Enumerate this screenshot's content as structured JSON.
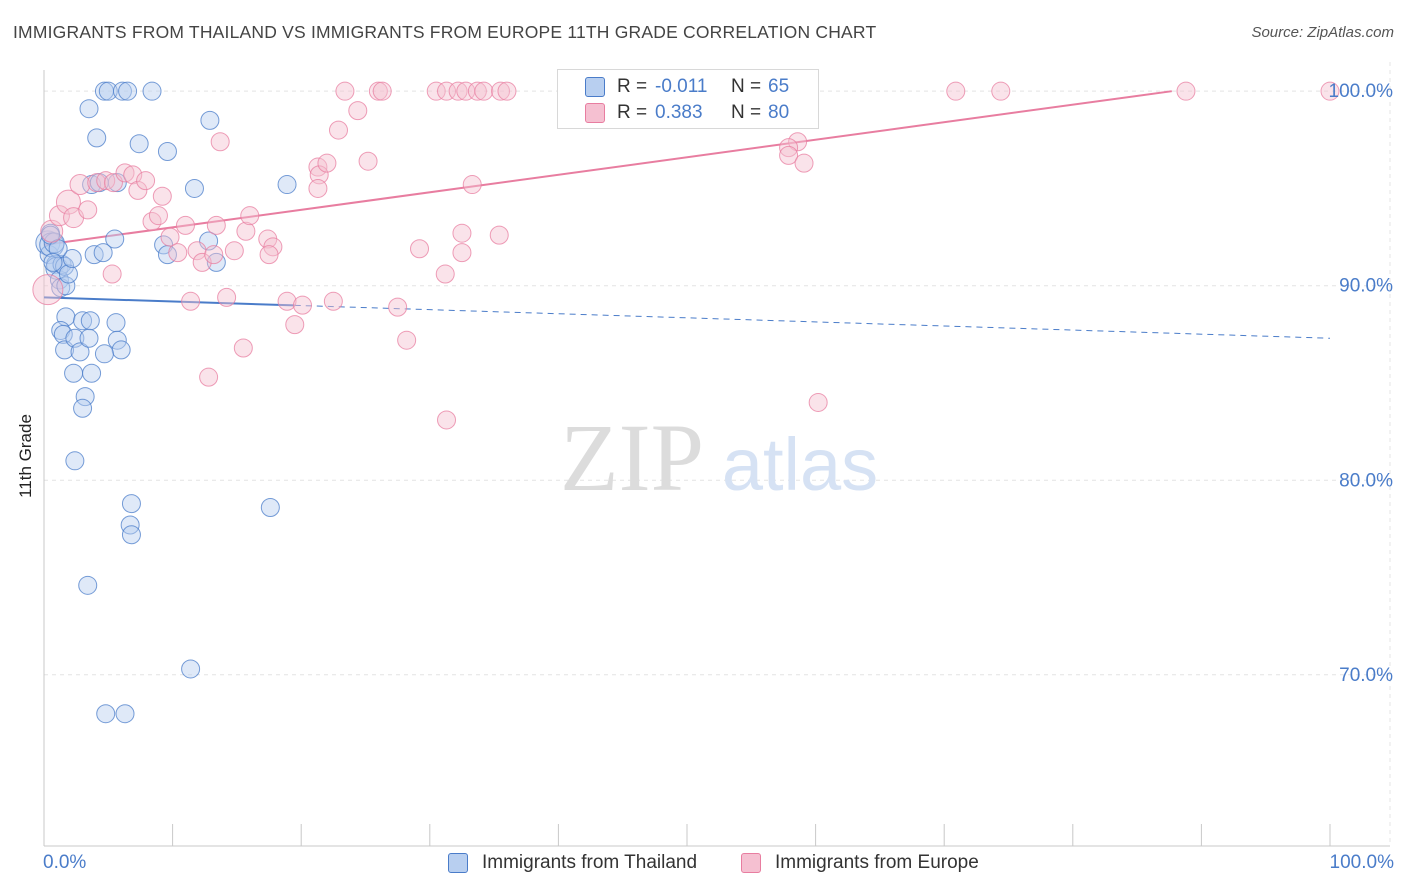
{
  "title": "IMMIGRANTS FROM THAILAND VS IMMIGRANTS FROM EUROPE 11TH GRADE CORRELATION CHART",
  "source": "Source: ZipAtlas.com",
  "watermark": {
    "zip": "ZIP",
    "atlas": "atlas"
  },
  "colors": {
    "blue": "#4a7cc9",
    "blue_fill": "#b8cff0",
    "pink": "#e87da0",
    "pink_fill": "#f5c0d1",
    "grid": "#e4e4e4"
  },
  "legend": {
    "rows": [
      {
        "r_label": "R =",
        "r_value": "-0.011",
        "n_label": "N =",
        "n_value": "65",
        "color": "blue"
      },
      {
        "r_label": "R =",
        "r_value": "0.383",
        "n_label": "N =",
        "n_value": "80",
        "color": "pink"
      }
    ]
  },
  "bottom_legend": [
    "Immigrants from Thailand",
    "Immigrants from Europe"
  ],
  "chart_data": {
    "type": "scatter",
    "title": "IMMIGRANTS FROM THAILAND VS IMMIGRANTS FROM EUROPE 11TH GRADE CORRELATION CHART",
    "xlabel": "",
    "ylabel": "11th Grade",
    "xlim": [
      0,
      100
    ],
    "ylim": [
      61.2,
      101.5
    ],
    "x_tick_labels": [
      "0.0%",
      "100.0%"
    ],
    "y_ticks": [
      100,
      90,
      80,
      70
    ],
    "y_tick_labels": [
      "100.0%",
      "90.0%",
      "80.0%",
      "70.0%"
    ],
    "series": [
      {
        "name": "Immigrants from Thailand",
        "color": "blue",
        "r": -0.011,
        "n": 65,
        "trend": {
          "x0": 0,
          "y0": 89.4,
          "x1": 100,
          "y1": 87.3,
          "solid_until": 19.5
        },
        "points": [
          [
            0.3,
            92.2,
            12
          ],
          [
            0.4,
            91.6,
            9
          ],
          [
            0.5,
            92.7,
            9
          ],
          [
            0.6,
            92.1,
            12
          ],
          [
            0.8,
            92.2,
            10
          ],
          [
            0.9,
            91.1,
            9
          ],
          [
            1.0,
            90.9,
            11
          ],
          [
            1.2,
            90.3,
            9
          ],
          [
            1.3,
            89.9,
            9
          ],
          [
            1.4,
            91.1,
            9
          ],
          [
            1.6,
            91.0,
            9
          ],
          [
            1.7,
            90.0,
            9
          ],
          [
            1.9,
            90.6,
            9
          ],
          [
            2.2,
            91.4,
            9
          ],
          [
            1.7,
            88.4,
            9
          ],
          [
            1.3,
            87.7,
            9
          ],
          [
            1.5,
            87.5,
            9
          ],
          [
            1.6,
            86.7,
            9
          ],
          [
            2.4,
            87.3,
            9
          ],
          [
            2.8,
            86.6,
            9
          ],
          [
            2.3,
            85.5,
            9
          ],
          [
            3.0,
            88.2,
            9
          ],
          [
            3.6,
            88.2,
            9
          ],
          [
            3.5,
            87.3,
            9
          ],
          [
            3.7,
            85.5,
            9
          ],
          [
            3.2,
            84.3,
            9
          ],
          [
            3.0,
            83.7,
            9
          ],
          [
            2.4,
            81.0,
            9
          ],
          [
            3.4,
            74.6,
            9
          ],
          [
            4.7,
            100.0,
            9
          ],
          [
            5.0,
            100.0,
            9
          ],
          [
            6.1,
            100.0,
            9
          ],
          [
            6.5,
            100.0,
            9
          ],
          [
            8.4,
            100.0,
            9
          ],
          [
            3.5,
            99.1,
            9
          ],
          [
            4.1,
            97.6,
            9
          ],
          [
            7.4,
            97.3,
            9
          ],
          [
            9.6,
            96.9,
            9
          ],
          [
            12.9,
            98.5,
            9
          ],
          [
            3.7,
            95.2,
            9
          ],
          [
            4.3,
            95.3,
            9
          ],
          [
            5.7,
            95.3,
            9
          ],
          [
            11.7,
            95.0,
            9
          ],
          [
            18.9,
            95.2,
            9
          ],
          [
            5.5,
            92.4,
            9
          ],
          [
            9.3,
            92.1,
            9
          ],
          [
            12.8,
            92.3,
            9
          ],
          [
            3.9,
            91.6,
            9
          ],
          [
            4.6,
            91.7,
            9
          ],
          [
            9.6,
            91.6,
            9
          ],
          [
            13.4,
            91.2,
            9
          ],
          [
            5.6,
            88.1,
            9
          ],
          [
            5.7,
            87.2,
            9
          ],
          [
            6.0,
            86.7,
            9
          ],
          [
            4.7,
            86.5,
            9
          ],
          [
            6.8,
            78.8,
            9
          ],
          [
            6.7,
            77.7,
            9
          ],
          [
            6.8,
            77.2,
            9
          ],
          [
            17.6,
            78.6,
            9
          ],
          [
            11.4,
            70.3,
            9
          ],
          [
            4.8,
            68.0,
            9
          ],
          [
            6.3,
            68.0,
            9
          ],
          [
            0.5,
            92.6,
            9
          ],
          [
            1.1,
            91.9,
            9
          ],
          [
            0.7,
            91.2,
            9
          ]
        ]
      },
      {
        "name": "Immigrants from Europe",
        "color": "pink",
        "r": 0.383,
        "n": 80,
        "trend": {
          "x0": 0,
          "y0": 92.1,
          "x1": 87.7,
          "y1": 100.0
        },
        "points": [
          [
            0.3,
            89.8,
            15
          ],
          [
            0.6,
            92.8,
            11
          ],
          [
            1.2,
            93.6,
            10
          ],
          [
            1.9,
            94.3,
            12
          ],
          [
            2.3,
            93.5,
            10
          ],
          [
            3.4,
            93.9,
            9
          ],
          [
            2.8,
            95.2,
            10
          ],
          [
            4.1,
            95.3,
            9
          ],
          [
            4.8,
            95.4,
            9
          ],
          [
            5.4,
            95.3,
            9
          ],
          [
            6.3,
            95.8,
            9
          ],
          [
            6.9,
            95.7,
            9
          ],
          [
            7.3,
            94.9,
            9
          ],
          [
            7.9,
            95.4,
            9
          ],
          [
            9.2,
            94.6,
            9
          ],
          [
            8.4,
            93.3,
            9
          ],
          [
            8.9,
            93.6,
            9
          ],
          [
            9.8,
            92.5,
            9
          ],
          [
            10.4,
            91.7,
            9
          ],
          [
            11.0,
            93.1,
            9
          ],
          [
            11.9,
            91.8,
            9
          ],
          [
            12.3,
            91.2,
            9
          ],
          [
            13.4,
            93.1,
            9
          ],
          [
            13.2,
            91.6,
            9
          ],
          [
            14.8,
            91.8,
            9
          ],
          [
            15.7,
            92.8,
            9
          ],
          [
            16.0,
            93.6,
            9
          ],
          [
            17.4,
            92.4,
            9
          ],
          [
            17.8,
            92.0,
            9
          ],
          [
            17.5,
            91.6,
            9
          ],
          [
            5.3,
            90.6,
            9
          ],
          [
            11.4,
            89.2,
            9
          ],
          [
            14.2,
            89.4,
            9
          ],
          [
            18.9,
            89.2,
            9
          ],
          [
            20.1,
            89.0,
            9
          ],
          [
            22.5,
            89.2,
            9
          ],
          [
            27.5,
            88.9,
            9
          ],
          [
            19.5,
            88.0,
            9
          ],
          [
            28.2,
            87.2,
            9
          ],
          [
            15.5,
            86.8,
            9
          ],
          [
            12.8,
            85.3,
            9
          ],
          [
            31.3,
            83.1,
            9
          ],
          [
            21.3,
            96.1,
            9
          ],
          [
            21.4,
            95.7,
            9
          ],
          [
            21.3,
            95.0,
            9
          ],
          [
            22.0,
            96.3,
            9
          ],
          [
            22.9,
            98.0,
            9
          ],
          [
            23.4,
            100.0,
            9
          ],
          [
            24.4,
            99.0,
            9
          ],
          [
            25.2,
            96.4,
            9
          ],
          [
            26.0,
            100.0,
            9
          ],
          [
            26.3,
            100.0,
            9
          ],
          [
            30.5,
            100.0,
            9
          ],
          [
            31.3,
            100.0,
            9
          ],
          [
            32.2,
            100.0,
            9
          ],
          [
            32.8,
            100.0,
            9
          ],
          [
            33.7,
            100.0,
            9
          ],
          [
            34.2,
            100.0,
            9
          ],
          [
            35.5,
            100.0,
            9
          ],
          [
            36.0,
            100.0,
            9
          ],
          [
            13.7,
            97.4,
            9
          ],
          [
            33.3,
            95.2,
            9
          ],
          [
            29.2,
            91.9,
            9
          ],
          [
            32.5,
            92.7,
            9
          ],
          [
            32.5,
            91.7,
            9
          ],
          [
            35.4,
            92.6,
            9
          ],
          [
            31.2,
            90.6,
            9
          ],
          [
            42.6,
            100.0,
            9
          ],
          [
            47.5,
            100.0,
            9
          ],
          [
            51.8,
            100.0,
            9
          ],
          [
            56.4,
            100.0,
            9
          ],
          [
            58.6,
            97.4,
            9
          ],
          [
            57.9,
            97.1,
            9
          ],
          [
            57.9,
            96.7,
            9
          ],
          [
            59.1,
            96.3,
            9
          ],
          [
            60.2,
            84.0,
            9
          ],
          [
            70.9,
            100.0,
            9
          ],
          [
            74.4,
            100.0,
            9
          ],
          [
            88.8,
            100.0,
            9
          ],
          [
            100.0,
            100.0,
            9
          ]
        ]
      }
    ],
    "watermark": "ZIPatlas"
  }
}
